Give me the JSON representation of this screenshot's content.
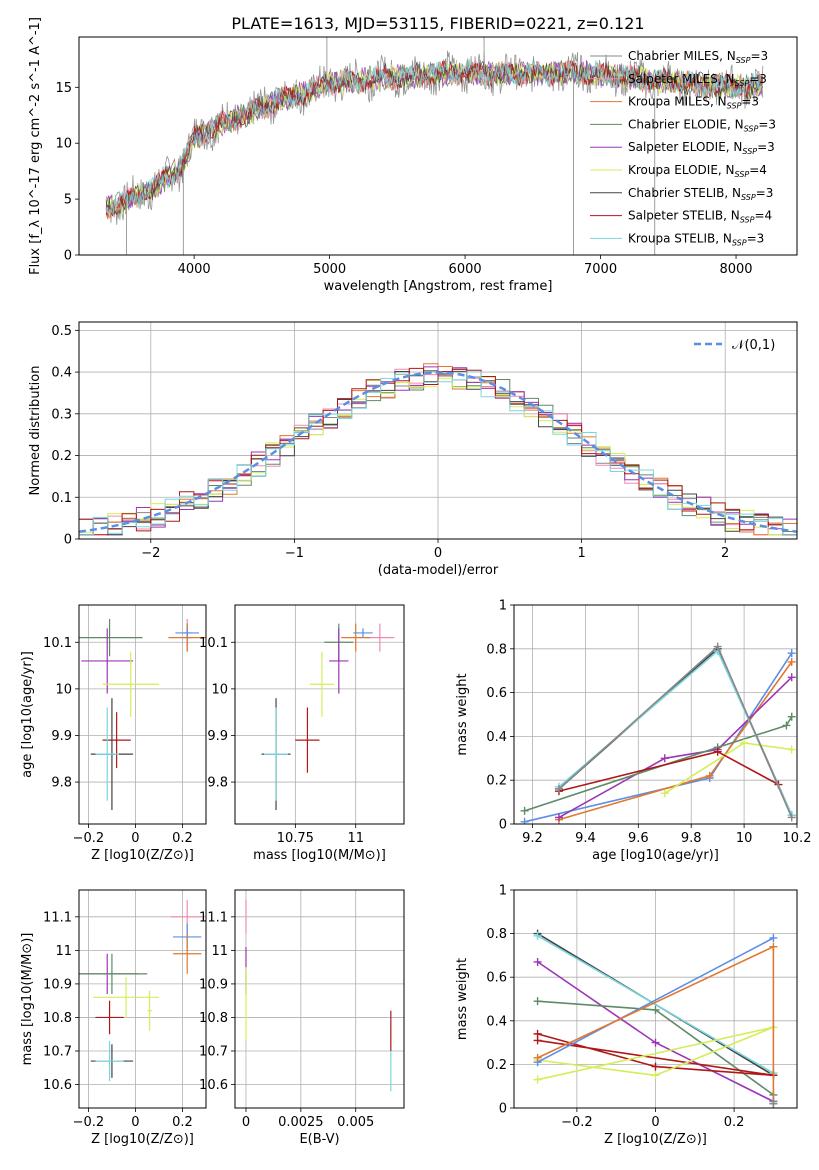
{
  "figure_title": "PLATE=1613, MJD=53115, FIBERID=0221, z=0.121",
  "colors": {
    "Chabrier MILES": "#888888",
    "Salpeter MILES": "#f08ab0",
    "Kroupa MILES": "#e07830",
    "Chabrier ELODIE": "#5e8a66",
    "Salpeter ELODIE": "#9c36b5",
    "Kroupa ELODIE": "#d4ee58",
    "Chabrier STELIB": "#444444",
    "Salpeter STELIB": "#b01818",
    "Kroupa STELIB": "#7ad6de",
    "blue": "#5b8ee6"
  },
  "chart_data": [
    {
      "id": "spectrum",
      "type": "line",
      "xlabel": "wavelength [Angstrom, rest frame]",
      "ylabel": "Flux [f_λ 10^-17 erg cm^-2 s^-1 A^-1]",
      "xlim": [
        3150,
        8450
      ],
      "ylim": [
        0,
        19.5
      ],
      "xticks": [
        4000,
        5000,
        6000,
        7000,
        8000
      ],
      "yticks": [
        0,
        5,
        10,
        15
      ],
      "grid": false,
      "legend_position": "right",
      "legend": [
        {
          "name": "Chabrier MILES",
          "nssp": "3"
        },
        {
          "name": "Salpeter MILES",
          "nssp": "3"
        },
        {
          "name": "Kroupa MILES",
          "nssp": "3"
        },
        {
          "name": "Chabrier ELODIE",
          "nssp": "3"
        },
        {
          "name": "Salpeter ELODIE",
          "nssp": "3"
        },
        {
          "name": "Kroupa ELODIE",
          "nssp": "4"
        },
        {
          "name": "Chabrier STELIB",
          "nssp": "3"
        },
        {
          "name": "Salpeter STELIB",
          "nssp": "4"
        },
        {
          "name": "Kroupa STELIB",
          "nssp": "3"
        }
      ],
      "continuum": {
        "x": [
          3350,
          3500,
          3700,
          3900,
          4000,
          4200,
          4400,
          4600,
          4800,
          5000,
          5200,
          5400,
          5600,
          5800,
          6000,
          6200,
          6400,
          6600,
          6800,
          7000,
          7200,
          7400,
          7600,
          7800,
          8000,
          8200
        ],
        "y": [
          4.3,
          4.8,
          6.0,
          7.8,
          10.5,
          11.8,
          12.6,
          13.8,
          14.4,
          15.3,
          15.6,
          15.9,
          16.0,
          16.2,
          16.4,
          16.2,
          16.2,
          16.3,
          16.3,
          16.2,
          15.9,
          15.6,
          15.4,
          15.2,
          15.0,
          15.2
        ]
      },
      "spikes": [
        {
          "x": 4980,
          "y": 19.5
        },
        {
          "x": 3500,
          "y": 0
        },
        {
          "x": 3920,
          "y": 0
        },
        {
          "x": 6800,
          "y": 0
        },
        {
          "x": 7400,
          "y": 0
        },
        {
          "x": 6140,
          "y": 19.5
        }
      ]
    },
    {
      "id": "residuals",
      "type": "histogram",
      "xlabel": "(data-model)/error",
      "ylabel": "Normed distribution",
      "xlim": [
        -2.5,
        2.5
      ],
      "ylim": [
        0,
        0.52
      ],
      "xticks": [
        -2,
        -1,
        0,
        1,
        2
      ],
      "yticks": [
        0,
        0.1,
        0.2,
        0.3,
        0.4,
        0.5
      ],
      "grid": true,
      "bin_width": 0.1,
      "legend_position": "top-right",
      "legend": [
        "𝒩(0,1)"
      ],
      "reference_curve": "normal(0,1)"
    },
    {
      "id": "age_vs_Z",
      "type": "errorbar",
      "xlabel": "Z [log10(Z/Z⊙)]",
      "ylabel": "age [log10(age/yr)]",
      "xlim": [
        -0.24,
        0.3
      ],
      "ylim": [
        9.71,
        10.18
      ],
      "xticks": [
        -0.2,
        0.0,
        0.2
      ],
      "yticks": [
        9.8,
        9.9,
        10.0,
        10.1
      ],
      "grid": true,
      "points": [
        {
          "model": "Chabrier MILES",
          "x": 0.22,
          "xerr": 0.02,
          "y": 10.11,
          "yerr": 0.03
        },
        {
          "model": "Salpeter MILES",
          "x": 0.22,
          "xerr": 0.02,
          "y": 10.12,
          "yerr": 0.03
        },
        {
          "model": "Kroupa MILES",
          "x": 0.22,
          "xerr": 0.08,
          "y": 10.11,
          "yerr": 0.03
        },
        {
          "model": "blue",
          "x": 0.22,
          "xerr": 0.05,
          "y": 10.12,
          "yerr": 0.01
        },
        {
          "model": "Chabrier ELODIE",
          "x": -0.11,
          "xerr": 0.14,
          "y": 10.11,
          "yerr": 0.04
        },
        {
          "model": "Salpeter ELODIE",
          "x": -0.12,
          "xerr": 0.11,
          "y": 10.06,
          "yerr": 0.07
        },
        {
          "model": "Kroupa ELODIE",
          "x": -0.02,
          "xerr": 0.12,
          "y": 10.01,
          "yerr": 0.07
        },
        {
          "model": "Salpeter STELIB",
          "x": -0.08,
          "xerr": 0.06,
          "y": 9.89,
          "yerr": 0.06
        },
        {
          "model": "Chabrier STELIB",
          "x": -0.1,
          "xerr": 0.09,
          "y": 9.86,
          "yerr": 0.12
        },
        {
          "model": "Kroupa STELIB",
          "x": -0.12,
          "xerr": 0.05,
          "y": 9.86,
          "yerr": 0.1
        }
      ]
    },
    {
      "id": "age_vs_mass",
      "type": "errorbar",
      "xlabel": "mass [log10(M/M⊙)]",
      "ylabel": "",
      "xlim": [
        10.5,
        11.2
      ],
      "ylim": [
        9.71,
        10.18
      ],
      "xticks": [
        10.75,
        11.0
      ],
      "yticks": [
        9.8,
        9.9,
        10.0,
        10.1
      ],
      "grid": true,
      "points": [
        {
          "model": "Chabrier ELODIE",
          "x": 10.93,
          "xerr": 0.06,
          "y": 10.1,
          "yerr": 0.04
        },
        {
          "model": "Salpeter ELODIE",
          "x": 10.93,
          "xerr": 0.04,
          "y": 10.06,
          "yerr": 0.07
        },
        {
          "model": "Salpeter MILES",
          "x": 11.1,
          "xerr": 0.06,
          "y": 10.11,
          "yerr": 0.03
        },
        {
          "model": "Kroupa MILES",
          "x": 11.0,
          "xerr": 0.06,
          "y": 10.11,
          "yerr": 0.03
        },
        {
          "model": "blue",
          "x": 11.03,
          "xerr": 0.04,
          "y": 10.12,
          "yerr": 0.01
        },
        {
          "model": "Kroupa ELODIE",
          "x": 10.86,
          "xerr": 0.05,
          "y": 10.01,
          "yerr": 0.07
        },
        {
          "model": "Salpeter STELIB",
          "x": 10.8,
          "xerr": 0.05,
          "y": 9.89,
          "yerr": 0.07
        },
        {
          "model": "Chabrier STELIB",
          "x": 10.67,
          "xerr": 0.06,
          "y": 9.86,
          "yerr": 0.12
        },
        {
          "model": "Kroupa STELIB",
          "x": 10.67,
          "xerr": 0.05,
          "y": 9.86,
          "yerr": 0.1
        }
      ]
    },
    {
      "id": "weight_vs_age",
      "type": "line",
      "xlabel": "age [log10(age/yr)]",
      "ylabel": "mass weight",
      "xlim": [
        9.13,
        10.2
      ],
      "ylim": [
        0,
        1.0
      ],
      "xticks": [
        9.2,
        9.4,
        9.6,
        9.8,
        10.0,
        10.2
      ],
      "yticks": [
        0,
        0.2,
        0.4,
        0.6,
        0.8,
        1.0
      ],
      "grid": true,
      "series": [
        {
          "model": "blue",
          "x": [
            9.17,
            9.87,
            10.18
          ],
          "y": [
            0.01,
            0.21,
            0.78
          ]
        },
        {
          "model": "Kroupa MILES",
          "x": [
            9.3,
            9.87,
            10.18
          ],
          "y": [
            0.02,
            0.22,
            0.74
          ]
        },
        {
          "model": "Salpeter ELODIE",
          "x": [
            9.3,
            9.7,
            9.9,
            10.18
          ],
          "y": [
            0.03,
            0.3,
            0.34,
            0.67
          ]
        },
        {
          "model": "Chabrier ELODIE",
          "x": [
            9.17,
            9.9,
            10.16,
            10.18
          ],
          "y": [
            0.06,
            0.35,
            0.45,
            0.49
          ]
        },
        {
          "model": "Kroupa ELODIE",
          "x": [
            9.7,
            10.0,
            10.18
          ],
          "y": [
            0.14,
            0.37,
            0.34
          ]
        },
        {
          "model": "Salpeter STELIB",
          "x": [
            9.3,
            9.9,
            10.13
          ],
          "y": [
            0.15,
            0.33,
            0.18
          ]
        },
        {
          "model": "Chabrier STELIB",
          "x": [
            9.3,
            9.9,
            10.18
          ],
          "y": [
            0.16,
            0.8,
            0.04
          ]
        },
        {
          "model": "Kroupa STELIB",
          "x": [
            9.3,
            9.9,
            10.18
          ],
          "y": [
            0.17,
            0.79,
            0.04
          ]
        },
        {
          "model": "Chabrier MILES",
          "x": [
            9.3,
            9.9,
            10.18
          ],
          "y": [
            0.16,
            0.81,
            0.03
          ]
        }
      ]
    },
    {
      "id": "mass_vs_Z",
      "type": "errorbar",
      "xlabel": "Z [log10(Z/Z⊙)]",
      "ylabel": "mass [log10(M/M⊙)]",
      "xlim": [
        -0.24,
        0.3
      ],
      "ylim": [
        10.53,
        11.18
      ],
      "xticks": [
        -0.2,
        0.0,
        0.2
      ],
      "yticks": [
        10.6,
        10.7,
        10.8,
        10.9,
        11.0,
        11.1
      ],
      "grid": true,
      "points": [
        {
          "model": "Salpeter MILES",
          "x": 0.22,
          "xerr": 0.07,
          "y": 11.1,
          "yerr": 0.05
        },
        {
          "model": "blue",
          "x": 0.22,
          "xerr": 0.06,
          "y": 11.04,
          "yerr": 0.04
        },
        {
          "model": "Kroupa MILES",
          "x": 0.22,
          "xerr": 0.06,
          "y": 10.99,
          "yerr": 0.06
        },
        {
          "model": "Salpeter ELODIE",
          "x": -0.12,
          "xerr": 0.13,
          "y": 10.93,
          "yerr": 0.06
        },
        {
          "model": "Chabrier ELODIE",
          "x": -0.1,
          "xerr": 0.15,
          "y": 10.93,
          "yerr": 0.06
        },
        {
          "model": "Kroupa ELODIE",
          "x": -0.04,
          "xerr": 0.14,
          "y": 10.86,
          "yerr": 0.06
        },
        {
          "model": "Kroupa ELODIE",
          "x": 0.06,
          "xerr": 0.01,
          "y": 10.82,
          "yerr": 0.06
        },
        {
          "model": "Salpeter STELIB",
          "x": -0.11,
          "xerr": 0.06,
          "y": 10.8,
          "yerr": 0.05
        },
        {
          "model": "Chabrier STELIB",
          "x": -0.1,
          "xerr": 0.09,
          "y": 10.67,
          "yerr": 0.05
        },
        {
          "model": "Kroupa STELIB",
          "x": -0.11,
          "xerr": 0.06,
          "y": 10.67,
          "yerr": 0.06
        }
      ]
    },
    {
      "id": "mass_vs_EBV",
      "type": "errorbar",
      "xlabel": "E(B-V)",
      "ylabel": "",
      "xlim": [
        -0.0005,
        0.0072
      ],
      "ylim": [
        10.53,
        11.18
      ],
      "xticks": [
        0.0,
        0.0025,
        0.005
      ],
      "yticks": [
        10.6,
        10.7,
        10.8,
        10.9,
        11.0,
        11.1
      ],
      "grid": true,
      "points": [
        {
          "model": "Salpeter MILES",
          "x": 0.0,
          "xerr": 0.0,
          "y": 11.1,
          "yerr": 0.05
        },
        {
          "model": "Salpeter ELODIE",
          "x": 0.0,
          "xerr": 0.0,
          "y": 10.94,
          "yerr": 0.07
        },
        {
          "model": "Kroupa ELODIE",
          "x": 0.0,
          "xerr": 0.0,
          "y": 10.84,
          "yerr": 0.11
        },
        {
          "model": "Salpeter STELIB",
          "x": 0.0066,
          "xerr": 0.0,
          "y": 10.76,
          "yerr": 0.06
        },
        {
          "model": "Kroupa STELIB",
          "x": 0.0066,
          "xerr": 0.0,
          "y": 10.64,
          "yerr": 0.06
        }
      ]
    },
    {
      "id": "weight_vs_Z",
      "type": "line",
      "xlabel": "Z [log10(Z/Z⊙)]",
      "ylabel": "mass weight",
      "xlim": [
        -0.36,
        0.36
      ],
      "ylim": [
        0,
        1.0
      ],
      "xticks": [
        -0.2,
        0.0,
        0.2
      ],
      "yticks": [
        0,
        0.2,
        0.4,
        0.6,
        0.8,
        1.0
      ],
      "grid": true,
      "series": [
        {
          "model": "Chabrier STELIB",
          "x": [
            -0.3,
            0.3
          ],
          "y": [
            0.8,
            0.15
          ]
        },
        {
          "model": "Kroupa STELIB",
          "x": [
            -0.3,
            0.3
          ],
          "y": [
            0.79,
            0.16
          ]
        },
        {
          "model": "Salpeter ELODIE",
          "x": [
            -0.3,
            0.0,
            0.3
          ],
          "y": [
            0.67,
            0.3,
            0.03
          ]
        },
        {
          "model": "Chabrier ELODIE",
          "x": [
            -0.3,
            0.0,
            0.3
          ],
          "y": [
            0.49,
            0.45,
            0.06
          ]
        },
        {
          "model": "Salpeter STELIB",
          "x": [
            -0.3,
            0.0,
            0.3,
            -0.3
          ],
          "y": [
            0.34,
            0.19,
            0.15,
            0.31
          ]
        },
        {
          "model": "Kroupa ELODIE",
          "x": [
            -0.3,
            0.0,
            0.3,
            -0.3
          ],
          "y": [
            0.22,
            0.15,
            0.37,
            0.13
          ]
        },
        {
          "model": "blue",
          "x": [
            -0.3,
            0.3
          ],
          "y": [
            0.21,
            0.78
          ]
        },
        {
          "model": "Kroupa MILES",
          "x": [
            -0.3,
            0.3,
            0.3
          ],
          "y": [
            0.23,
            0.74,
            0.02
          ]
        },
        {
          "model": "Chabrier MILES",
          "x": [
            0.3,
            0.3
          ],
          "y": [
            0.02,
            0.03
          ]
        }
      ]
    }
  ]
}
